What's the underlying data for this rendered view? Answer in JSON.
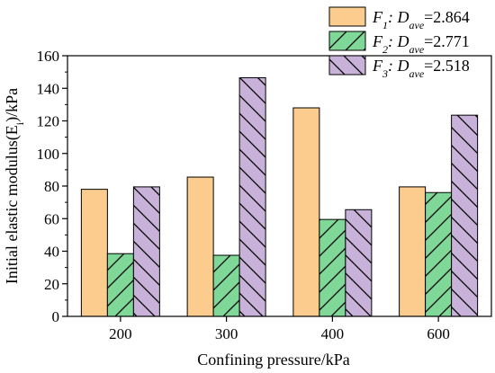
{
  "chart_data": {
    "type": "bar",
    "title": "",
    "xlabel": "Confining pressure/kPa",
    "ylabel": "Initial elastic modulus(E",
    "ylabel_sub": "i",
    "ylabel_suffix": ")/kPa",
    "ylim": [
      0,
      160
    ],
    "yticks": [
      0,
      20,
      40,
      60,
      80,
      100,
      120,
      140,
      160
    ],
    "categories": [
      "200",
      "300",
      "400",
      "600"
    ],
    "legend_position": "top-right",
    "series": [
      {
        "name": "F1: Dave=2.864",
        "label_main": "F",
        "label_sub": "1",
        "label_mid": ": D",
        "label_sub2": "ave",
        "label_value": "=2.864",
        "values": [
          78,
          85.5,
          128,
          79.5
        ],
        "color": "#fccc8f",
        "pattern": "none"
      },
      {
        "name": "F2: Dave=2.771",
        "label_main": "F",
        "label_sub": "2",
        "label_mid": ": D",
        "label_sub2": "ave",
        "label_value": "=2.771",
        "values": [
          38.5,
          37.5,
          59.5,
          76
        ],
        "color": "#7fd898",
        "pattern": "forward-diagonal"
      },
      {
        "name": "F3: Dave=2.518",
        "label_main": "F",
        "label_sub": "3",
        "label_mid": ": D",
        "label_sub2": "ave",
        "label_value": "=2.518",
        "values": [
          79.5,
          146.5,
          65.5,
          123.5
        ],
        "color": "#c9b2da",
        "pattern": "backward-diagonal"
      }
    ]
  }
}
